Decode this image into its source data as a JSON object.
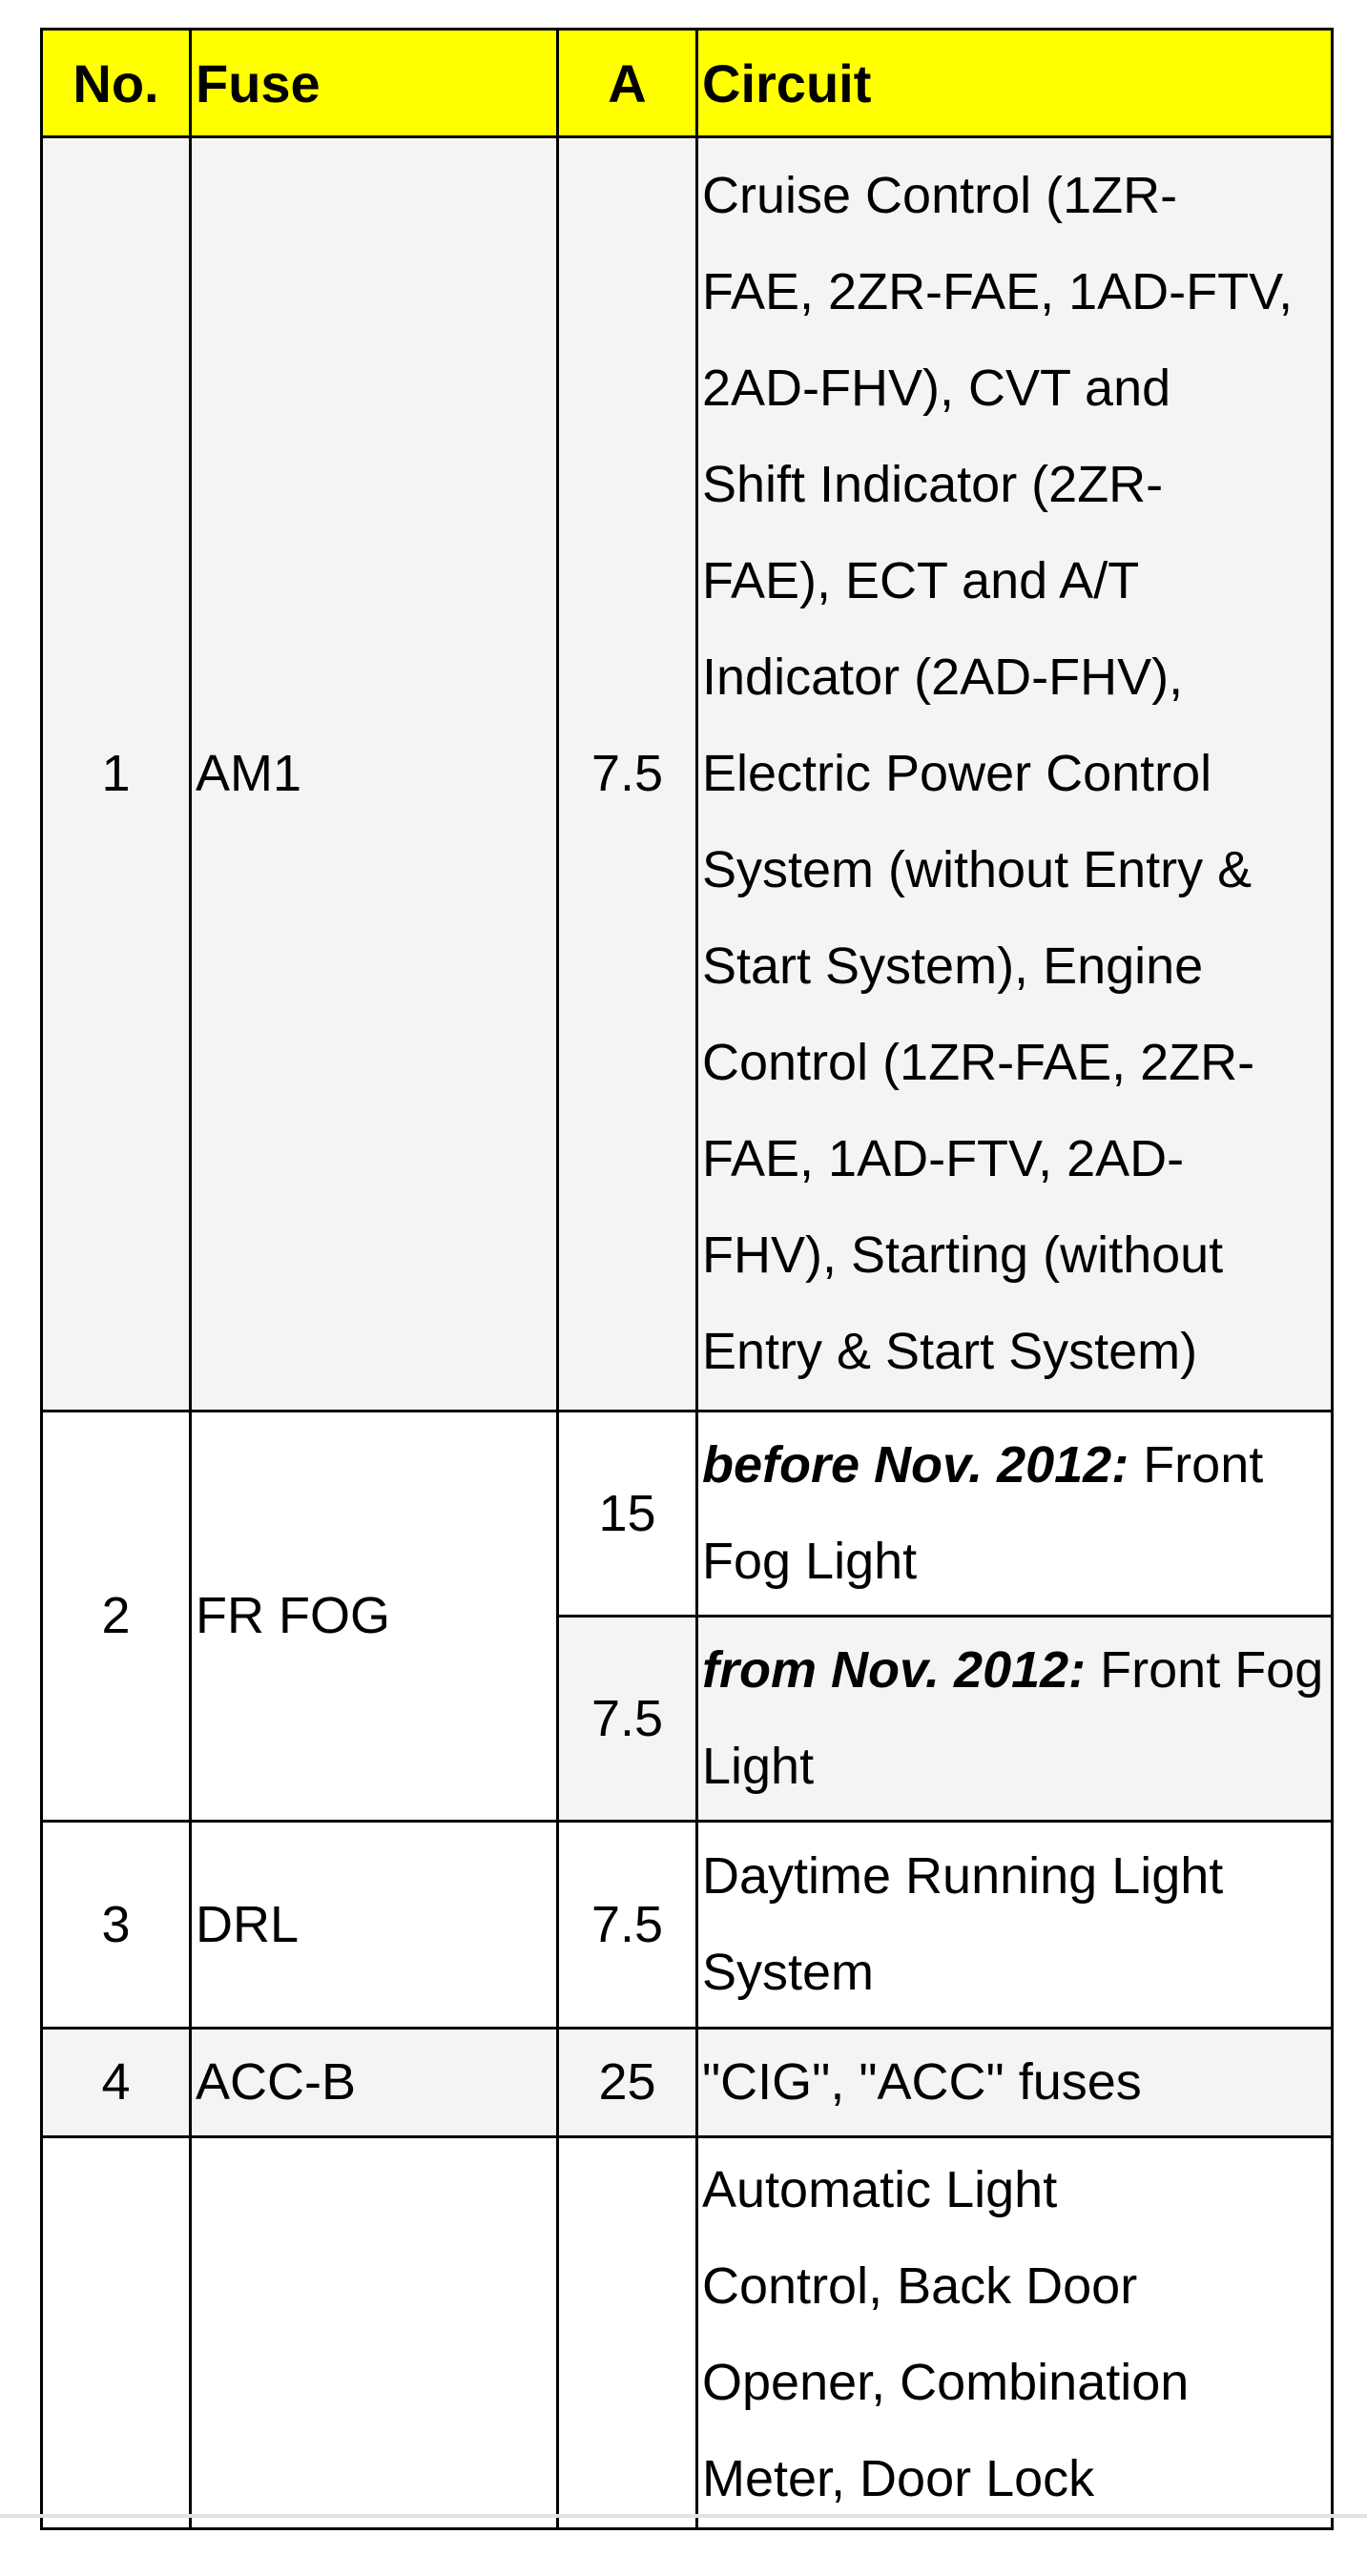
{
  "table": {
    "headers": {
      "no": "No.",
      "fuse": "Fuse",
      "a": "A",
      "circuit": "Circuit"
    },
    "header_color": "#ffff00",
    "rows": [
      {
        "no": "1",
        "fuse": "AM1",
        "a": "7.5",
        "circuit_lines": [
          "Cruise Control (1ZR-",
          "FAE, 2ZR-FAE, 1AD-FTV,",
          "2AD-FHV), CVT and",
          "Shift Indicator (2ZR-",
          "FAE), ECT and A/T",
          "Indicator (2AD-FHV),",
          "Electric Power Control",
          "System (without Entry &",
          "Start System), Engine",
          "Control (1ZR-FAE, 2ZR-",
          "FAE, 1AD-FTV, 2AD-",
          "FHV), Starting (without",
          "Entry & Start System)"
        ]
      },
      {
        "no": "2",
        "fuse": "FR FOG",
        "variants": [
          {
            "a": "15",
            "prefix": "before Nov. 2012:",
            "text": " Front Fog Light"
          },
          {
            "a": "7.5",
            "prefix": "from Nov. 2012:",
            "text": " Front Fog Light"
          }
        ]
      },
      {
        "no": "3",
        "fuse": "DRL",
        "a": "7.5",
        "circuit_lines": [
          "Daytime Running Light",
          "System"
        ]
      },
      {
        "no": "4",
        "fuse": "ACC-B",
        "a": "25",
        "circuit_lines": [
          "\"CIG\", \"ACC\" fuses"
        ]
      },
      {
        "no": "",
        "fuse": "",
        "a": "",
        "circuit_lines": [
          "Automatic Light",
          "Control, Back Door",
          "Opener, Combination",
          "Meter, Door Lock"
        ]
      }
    ]
  }
}
